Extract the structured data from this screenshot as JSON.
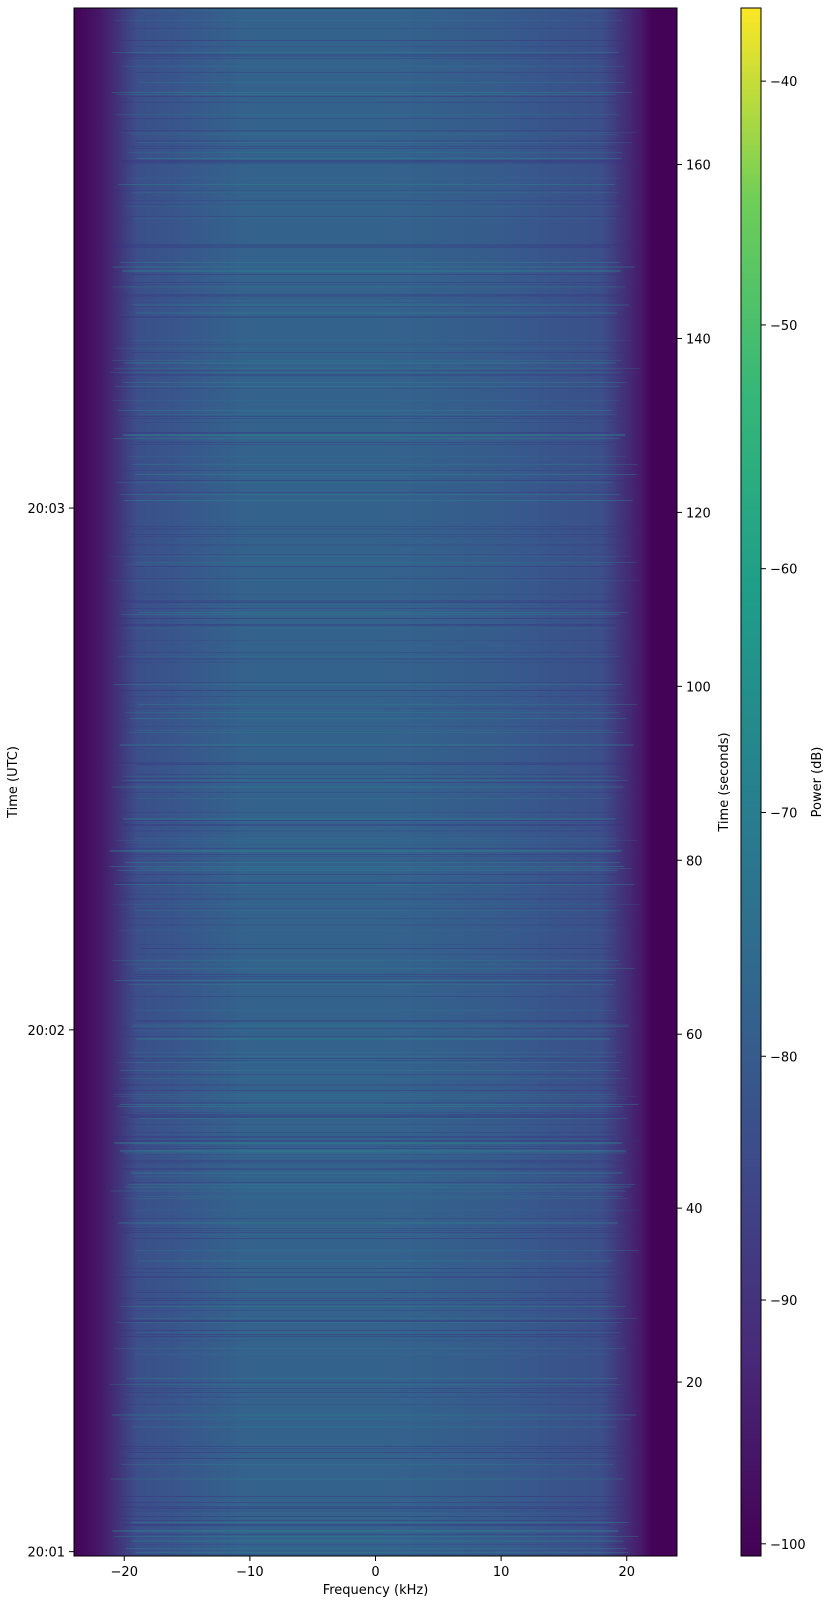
{
  "chart_data": {
    "type": "heatmap",
    "xlabel": "Frequency (kHz)",
    "ylabel_left": "Time (UTC)",
    "ylabel_right": "Time (seconds)",
    "colorbar_label": "Power (dB)",
    "colormap": "viridis",
    "xlim": [
      -24,
      24
    ],
    "x_ticks": [
      -20,
      -10,
      0,
      10,
      20
    ],
    "x_tick_labels": [
      "−20",
      "−10",
      "0",
      "10",
      "20"
    ],
    "ylim_seconds": [
      0,
      178
    ],
    "right_y_ticks": [
      20,
      40,
      60,
      80,
      100,
      120,
      140,
      160
    ],
    "left_y_ticks": [
      {
        "label": "20:01",
        "seconds": 0.5
      },
      {
        "label": "20:02",
        "seconds": 60.5
      },
      {
        "label": "20:03",
        "seconds": 120.5
      }
    ],
    "clim": [
      -100.5,
      -37
    ],
    "colorbar_ticks": [
      -100,
      -90,
      -80,
      -70,
      -60,
      -50,
      -40
    ],
    "colorbar_tick_labels": [
      "−100",
      "−90",
      "−80",
      "−70",
      "−60",
      "−50",
      "−40"
    ],
    "passband_kHz": [
      -22,
      21.5
    ],
    "power_profile": [
      {
        "freq": -24,
        "power": -100
      },
      {
        "freq": -22,
        "power": -96
      },
      {
        "freq": -19,
        "power": -83
      },
      {
        "freq": -10,
        "power": -78
      },
      {
        "freq": 0,
        "power": -78
      },
      {
        "freq": 10,
        "power": -80
      },
      {
        "freq": 18,
        "power": -83
      },
      {
        "freq": 21,
        "power": -95
      },
      {
        "freq": 22,
        "power": -100
      },
      {
        "freq": 24,
        "power": -100
      }
    ]
  }
}
